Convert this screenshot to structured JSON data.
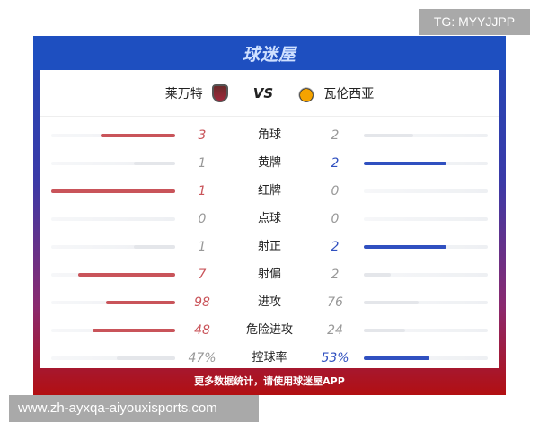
{
  "brand": "球迷屋",
  "home": {
    "name": "莱万特",
    "color": "#c9545a"
  },
  "away": {
    "name": "瓦伦西亚",
    "color": "#3050c0"
  },
  "vs": "VS",
  "neutral_color": "#e4e6ea",
  "stats": [
    {
      "label": "角球",
      "home": "3",
      "away": "2",
      "home_share": 0.6,
      "away_share": 0.4
    },
    {
      "label": "黄牌",
      "home": "1",
      "away": "2",
      "home_share": 0.33,
      "away_share": 0.67
    },
    {
      "label": "红牌",
      "home": "1",
      "away": "0",
      "home_share": 1,
      "away_share": 0
    },
    {
      "label": "点球",
      "home": "0",
      "away": "0",
      "home_share": 0,
      "away_share": 0
    },
    {
      "label": "射正",
      "home": "1",
      "away": "2",
      "home_share": 0.33,
      "away_share": 0.67
    },
    {
      "label": "射偏",
      "home": "7",
      "away": "2",
      "home_share": 0.78,
      "away_share": 0.22
    },
    {
      "label": "进攻",
      "home": "98",
      "away": "76",
      "home_share": 0.56,
      "away_share": 0.44
    },
    {
      "label": "危险进攻",
      "home": "48",
      "away": "24",
      "home_share": 0.67,
      "away_share": 0.33
    },
    {
      "label": "控球率",
      "home": "47%",
      "away": "53%",
      "home_share": 0.47,
      "away_share": 0.53
    }
  ],
  "footer": "更多数据统计，请使用球迷屋APP",
  "watermark_top": "TG: MYYJJPP",
  "watermark_bottom": "www.zh-ayxqa-aiyouxisports.com"
}
